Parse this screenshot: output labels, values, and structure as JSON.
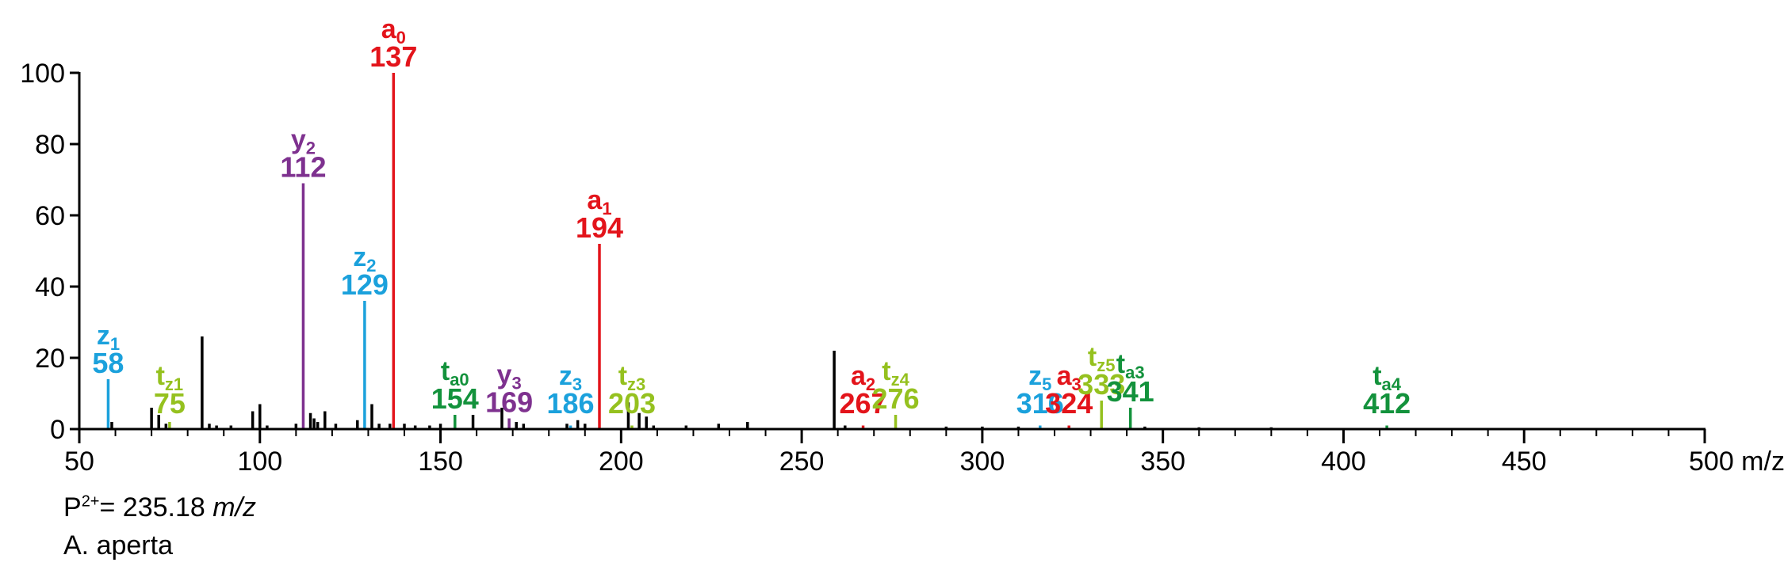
{
  "chart_data": {
    "type": "bar",
    "title": "",
    "xlabel": "m/z",
    "ylabel": "",
    "xlim": [
      50,
      500
    ],
    "ylim": [
      0,
      100
    ],
    "x_major_ticks": [
      50,
      100,
      150,
      200,
      250,
      300,
      350,
      400,
      450,
      500
    ],
    "x_tick_labels": [
      "50",
      "100",
      "150",
      "200",
      "250",
      "300",
      "350",
      "400",
      "450",
      "500 m/z"
    ],
    "y_ticks": [
      0,
      20,
      40,
      60,
      80,
      100
    ],
    "y_tick_labels": [
      "0",
      "20",
      "40",
      "60",
      "80",
      "100"
    ],
    "colors": {
      "a": "#e3141b",
      "z": "#1ba1dc",
      "y": "#7e318f",
      "tz": "#95c11f",
      "ta": "#13923c",
      "other": "#000000"
    },
    "annotated_peaks": [
      {
        "name": "z",
        "sub": "1",
        "mz": "58",
        "x": 58,
        "y": 14,
        "ion": "z"
      },
      {
        "name": "t",
        "sub": "z1",
        "mz": "75",
        "x": 75,
        "y": 2,
        "ion": "tz"
      },
      {
        "name": "y",
        "sub": "2",
        "mz": "112",
        "x": 112,
        "y": 69,
        "ion": "y"
      },
      {
        "name": "z",
        "sub": "2",
        "mz": "129",
        "x": 129,
        "y": 36,
        "ion": "z"
      },
      {
        "name": "a",
        "sub": "0",
        "mz": "137",
        "x": 137,
        "y": 100,
        "ion": "a"
      },
      {
        "name": "t",
        "sub": "a0",
        "mz": "154",
        "x": 154,
        "y": 4,
        "ion": "ta"
      },
      {
        "name": "y",
        "sub": "3",
        "mz": "169",
        "x": 169,
        "y": 3,
        "ion": "y"
      },
      {
        "name": "z",
        "sub": "3",
        "mz": "186",
        "x": 186,
        "y": 1,
        "ion": "z"
      },
      {
        "name": "a",
        "sub": "1",
        "mz": "194",
        "x": 194,
        "y": 52,
        "ion": "a"
      },
      {
        "name": "t",
        "sub": "z3",
        "mz": "203",
        "x": 203,
        "y": 1,
        "ion": "tz"
      },
      {
        "name": "a",
        "sub": "2",
        "mz": "267",
        "x": 267,
        "y": 1,
        "ion": "a"
      },
      {
        "name": "t",
        "sub": "z4",
        "mz": "276",
        "x": 276,
        "y": 4,
        "ion": "tz"
      },
      {
        "name": "z",
        "sub": "5",
        "mz": "316",
        "x": 316,
        "y": 1,
        "ion": "z"
      },
      {
        "name": "a",
        "sub": "3",
        "mz": "324",
        "x": 324,
        "y": 1,
        "ion": "a"
      },
      {
        "name": "t",
        "sub": "z5",
        "mz": "333",
        "x": 333,
        "y": 8,
        "ion": "tz"
      },
      {
        "name": "t",
        "sub": "a3",
        "mz": "341",
        "x": 341,
        "y": 6,
        "ion": "ta"
      },
      {
        "name": "t",
        "sub": "a4",
        "mz": "412",
        "x": 412,
        "y": 1,
        "ion": "ta"
      }
    ],
    "other_peaks": [
      {
        "x": 59,
        "y": 2
      },
      {
        "x": 70,
        "y": 6
      },
      {
        "x": 72,
        "y": 4
      },
      {
        "x": 74,
        "y": 1.5
      },
      {
        "x": 84,
        "y": 26
      },
      {
        "x": 86,
        "y": 1.5
      },
      {
        "x": 88,
        "y": 1
      },
      {
        "x": 92,
        "y": 1
      },
      {
        "x": 98,
        "y": 5
      },
      {
        "x": 100,
        "y": 7
      },
      {
        "x": 102,
        "y": 1
      },
      {
        "x": 110,
        "y": 1.5
      },
      {
        "x": 114,
        "y": 4.5
      },
      {
        "x": 115,
        "y": 3
      },
      {
        "x": 116,
        "y": 2
      },
      {
        "x": 118,
        "y": 5
      },
      {
        "x": 121,
        "y": 1.5
      },
      {
        "x": 127,
        "y": 2.5
      },
      {
        "x": 131,
        "y": 7
      },
      {
        "x": 133,
        "y": 1.5
      },
      {
        "x": 136,
        "y": 1.5
      },
      {
        "x": 140,
        "y": 1.5
      },
      {
        "x": 143,
        "y": 1
      },
      {
        "x": 147,
        "y": 1
      },
      {
        "x": 150,
        "y": 1.5
      },
      {
        "x": 159,
        "y": 4
      },
      {
        "x": 167,
        "y": 6
      },
      {
        "x": 171,
        "y": 2
      },
      {
        "x": 173,
        "y": 1.5
      },
      {
        "x": 185,
        "y": 1.5
      },
      {
        "x": 188,
        "y": 2.5
      },
      {
        "x": 190,
        "y": 1.5
      },
      {
        "x": 202,
        "y": 7.5
      },
      {
        "x": 205,
        "y": 4.5
      },
      {
        "x": 207,
        "y": 3.5
      },
      {
        "x": 209,
        "y": 1
      },
      {
        "x": 218,
        "y": 1
      },
      {
        "x": 227,
        "y": 1.5
      },
      {
        "x": 235,
        "y": 2
      },
      {
        "x": 259,
        "y": 22
      },
      {
        "x": 262,
        "y": 1
      },
      {
        "x": 290,
        "y": 0.7
      },
      {
        "x": 300,
        "y": 0.7
      },
      {
        "x": 310,
        "y": 0.7
      },
      {
        "x": 345,
        "y": 0.7
      },
      {
        "x": 360,
        "y": 0.5
      },
      {
        "x": 380,
        "y": 0.5
      }
    ]
  },
  "footnote": {
    "precursor_prefix": "P",
    "precursor_charge": "2+",
    "precursor_value": "= 235.18 ",
    "precursor_unit": "m/z",
    "species": "A. aperta"
  }
}
